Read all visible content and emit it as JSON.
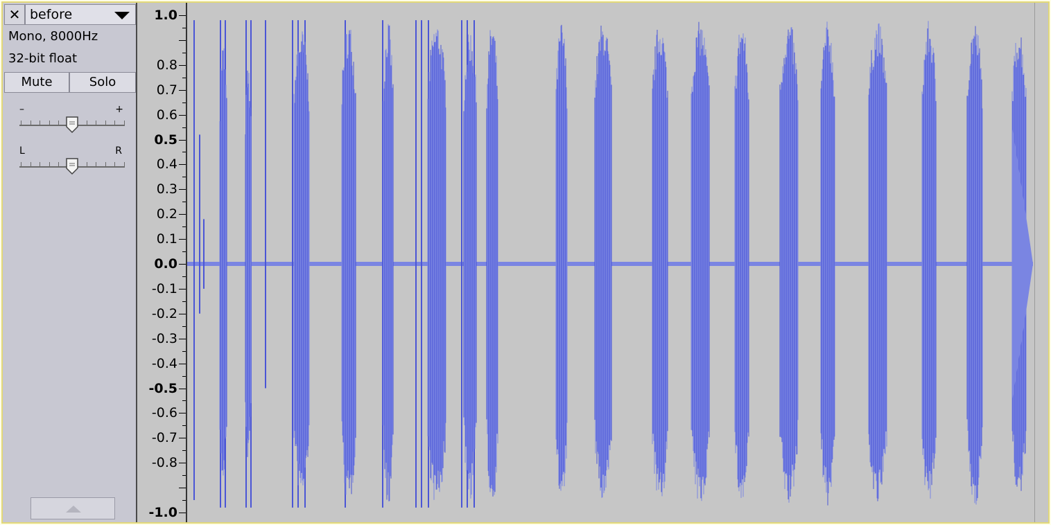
{
  "track": {
    "name": "before",
    "close_glyph": "✕",
    "format": "Mono, 8000Hz",
    "sample_format": "32-bit float",
    "mute_label": "Mute",
    "solo_label": "Solo",
    "gain": {
      "minus": "–",
      "plus": "+",
      "value": 0.5
    },
    "pan": {
      "left": "L",
      "right": "R",
      "value": 0.5
    }
  },
  "ruler": {
    "labels": [
      "1.0",
      "0.8",
      "0.7",
      "0.6",
      "0.5",
      "0.4",
      "0.3",
      "0.2",
      "0.1",
      "0.0",
      "-0.1",
      "-0.2",
      "-0.3",
      "-0.4",
      "-0.5",
      "-0.6",
      "-0.7",
      "-0.8",
      "-1.0"
    ],
    "values": [
      1.0,
      0.8,
      0.7,
      0.6,
      0.5,
      0.4,
      0.3,
      0.2,
      0.1,
      0.0,
      -0.1,
      -0.2,
      -0.3,
      -0.4,
      -0.5,
      -0.6,
      -0.7,
      -0.8,
      -1.0
    ],
    "bold": [
      "1.0",
      "0.5",
      "0.0",
      "-0.5",
      "-1.0"
    ]
  },
  "icons": {
    "close": "close-icon",
    "dropdown": "dropdown-arrow-icon",
    "collapse": "collapse-arrow-icon",
    "gain_thumb": "slider-thumb-icon",
    "pan_thumb": "slider-thumb-icon"
  },
  "colors": {
    "wave_dark": "#4a55d6",
    "wave_light": "#7a85e2",
    "background": "#c6c6c6",
    "panel": "#c8c8d2",
    "border_highlight": "#e3d978"
  }
}
